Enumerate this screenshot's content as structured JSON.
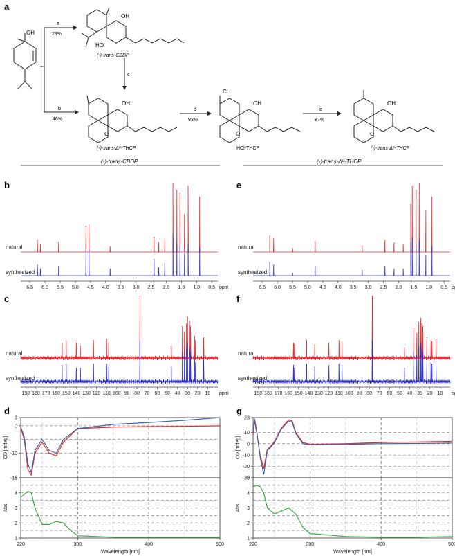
{
  "panels": {
    "a": "a",
    "b": "b",
    "c": "c",
    "d": "d",
    "e": "e",
    "f": "f",
    "g": "g"
  },
  "scheme": {
    "compounds": {
      "cbdp_top": "(-)-trans-CBDP",
      "thcp_d9": "(-)-trans-Δ⁹-THCP",
      "hcl_thcp": "HCl-THCP",
      "thcp_d8": "(-)-trans-Δ⁸-THCP"
    },
    "steps": {
      "a": {
        "label": "a",
        "yield": "23%"
      },
      "b": {
        "label": "b",
        "yield": "46%"
      },
      "c": {
        "label": "c"
      },
      "d": {
        "label": "d",
        "yield": "93%"
      },
      "e": {
        "label": "e",
        "yield": "87%"
      }
    },
    "atoms": {
      "oh": "OH",
      "ho": "HO",
      "cl": "Cl",
      "o": "O"
    },
    "section_left": "(-)-trans-CBDP",
    "section_right": "(-)-trans-Δ⁸-THCP"
  },
  "nmr": {
    "natural": "natural",
    "synthesized": "synthesized",
    "ppm": "ppm",
    "h_ticks": [
      "6.5",
      "6.0",
      "5.5",
      "5.0",
      "4.5",
      "4.0",
      "3.5",
      "3.0",
      "2.5",
      "2.0",
      "1.5",
      "1.0",
      "0.5"
    ],
    "c_ticks": [
      "190",
      "180",
      "170",
      "160",
      "150",
      "140",
      "130",
      "120",
      "110",
      "100",
      "90",
      "80",
      "70",
      "60",
      "50",
      "40",
      "30",
      "20",
      "10"
    ]
  },
  "cd": {
    "xlabel": "Wavelength [nm]",
    "cd_ylabel": "CD [mdeg]",
    "abs_ylabel": "Abs",
    "x_ticks": [
      "220",
      "300",
      "400",
      "500"
    ],
    "d_cd_ticks": [
      "3",
      "0",
      "-10",
      "-19"
    ],
    "g_cd_ticks": [
      "23",
      "10",
      "0",
      "-10",
      "-20",
      "-30"
    ],
    "abs_ticks": [
      "5",
      "4",
      "3",
      "2",
      "1"
    ]
  },
  "colors": {
    "natural": "#e8262b",
    "synthesized": "#2b2bd0",
    "abs_line": "#3aa843",
    "cd_blue": "#3d64a8"
  },
  "chart_data": [
    {
      "type": "line",
      "name": "b",
      "xlabel": "ppm",
      "xlim": [
        6.8,
        0.3
      ],
      "series": [
        {
          "name": "natural"
        },
        {
          "name": "synthesized"
        }
      ],
      "peaks_ppm": [
        6.25,
        6.15,
        5.55,
        4.65,
        4.55,
        3.85,
        2.4,
        2.25,
        2.05,
        1.78,
        1.65,
        1.55,
        1.4,
        1.28,
        0.9
      ]
    },
    {
      "type": "line",
      "name": "e",
      "xlabel": "ppm",
      "xlim": [
        6.8,
        0.3
      ],
      "series": [
        {
          "name": "natural"
        },
        {
          "name": "synthesized"
        }
      ],
      "peaks_ppm": [
        6.25,
        6.12,
        5.5,
        4.75,
        3.2,
        2.45,
        2.15,
        1.85,
        1.6,
        1.55,
        1.42,
        1.32,
        1.1,
        0.9
      ]
    },
    {
      "type": "line",
      "name": "c",
      "xlabel": "ppm",
      "xlim": [
        195,
        0
      ],
      "series": [
        {
          "name": "natural"
        },
        {
          "name": "synthesized"
        }
      ],
      "peaks_ppm": [
        154,
        150,
        140,
        136,
        123,
        110,
        108,
        77,
        46,
        35,
        33,
        31,
        30,
        28,
        27,
        23,
        22,
        14
      ]
    },
    {
      "type": "line",
      "name": "f",
      "xlabel": "ppm",
      "xlim": [
        195,
        0
      ],
      "series": [
        {
          "name": "natural"
        },
        {
          "name": "synthesized"
        }
      ],
      "peaks_ppm": [
        155,
        154,
        142,
        134,
        120,
        110,
        107,
        77,
        45,
        36,
        33,
        31,
        29,
        28,
        27,
        23,
        19,
        18,
        14
      ]
    },
    {
      "type": "line",
      "name": "d-CD",
      "xlabel": "Wavelength [nm]",
      "ylabel": "CD [mdeg]",
      "xlim": [
        220,
        500
      ],
      "ylim": [
        -19,
        3
      ],
      "series": [
        {
          "name": "natural",
          "x": [
            220,
            225,
            230,
            235,
            240,
            250,
            260,
            270,
            280,
            300,
            350,
            400,
            450,
            500
          ],
          "y": [
            -1,
            -5,
            -16,
            -18,
            -10,
            -6,
            -10,
            -11,
            -6,
            -1,
            -0.5,
            -0.3,
            -0.2,
            0
          ]
        },
        {
          "name": "synthesized",
          "x": [
            220,
            225,
            230,
            235,
            240,
            250,
            260,
            270,
            280,
            300,
            350,
            400,
            450,
            500
          ],
          "y": [
            -0.5,
            -4,
            -14,
            -17,
            -9,
            -5,
            -9,
            -10,
            -5,
            -1,
            0.5,
            1.2,
            2,
            3
          ]
        }
      ]
    },
    {
      "type": "line",
      "name": "d-Abs",
      "xlabel": "Wavelength [nm]",
      "ylabel": "Abs",
      "xlim": [
        220,
        500
      ],
      "ylim": [
        1,
        5
      ],
      "series": [
        {
          "name": "Abs",
          "x": [
            220,
            225,
            230,
            235,
            240,
            250,
            260,
            270,
            280,
            290,
            300,
            350,
            400,
            450,
            500
          ],
          "y": [
            3.7,
            3.9,
            4.1,
            4.0,
            3.0,
            1.9,
            1.9,
            2.1,
            2.0,
            1.5,
            1.15,
            1.05,
            1.05,
            1.05,
            1.05
          ]
        }
      ]
    },
    {
      "type": "line",
      "name": "g-CD",
      "xlabel": "Wavelength [nm]",
      "ylabel": "CD [mdeg]",
      "xlim": [
        220,
        500
      ],
      "ylim": [
        -30,
        23
      ],
      "series": [
        {
          "name": "natural",
          "x": [
            220,
            222,
            225,
            230,
            235,
            240,
            245,
            250,
            260,
            270,
            275,
            280,
            290,
            300,
            350,
            400,
            450,
            500
          ],
          "y": [
            8,
            20,
            10,
            -10,
            -22,
            -5,
            -2,
            2,
            14,
            21,
            20,
            10,
            1,
            -0.5,
            0,
            1,
            1.5,
            2
          ]
        },
        {
          "name": "synthesized",
          "x": [
            220,
            222,
            225,
            230,
            235,
            240,
            245,
            250,
            260,
            270,
            275,
            280,
            290,
            300,
            350,
            400,
            450,
            500
          ],
          "y": [
            10,
            22,
            12,
            -12,
            -27,
            -6,
            -3,
            1,
            13,
            20,
            19,
            9,
            0,
            -1,
            -0.5,
            0,
            0.2,
            0.5
          ]
        }
      ]
    },
    {
      "type": "line",
      "name": "g-Abs",
      "xlabel": "Wavelength [nm]",
      "ylabel": "Abs",
      "xlim": [
        220,
        500
      ],
      "ylim": [
        1,
        5
      ],
      "series": [
        {
          "name": "Abs",
          "x": [
            220,
            225,
            230,
            235,
            240,
            250,
            260,
            270,
            280,
            290,
            300,
            350,
            400,
            450,
            500
          ],
          "y": [
            4.4,
            4.5,
            4.4,
            4.0,
            3.0,
            2.6,
            2.8,
            3.0,
            2.6,
            1.7,
            1.3,
            1.1,
            1.05,
            1.05,
            1.1
          ]
        }
      ]
    }
  ]
}
